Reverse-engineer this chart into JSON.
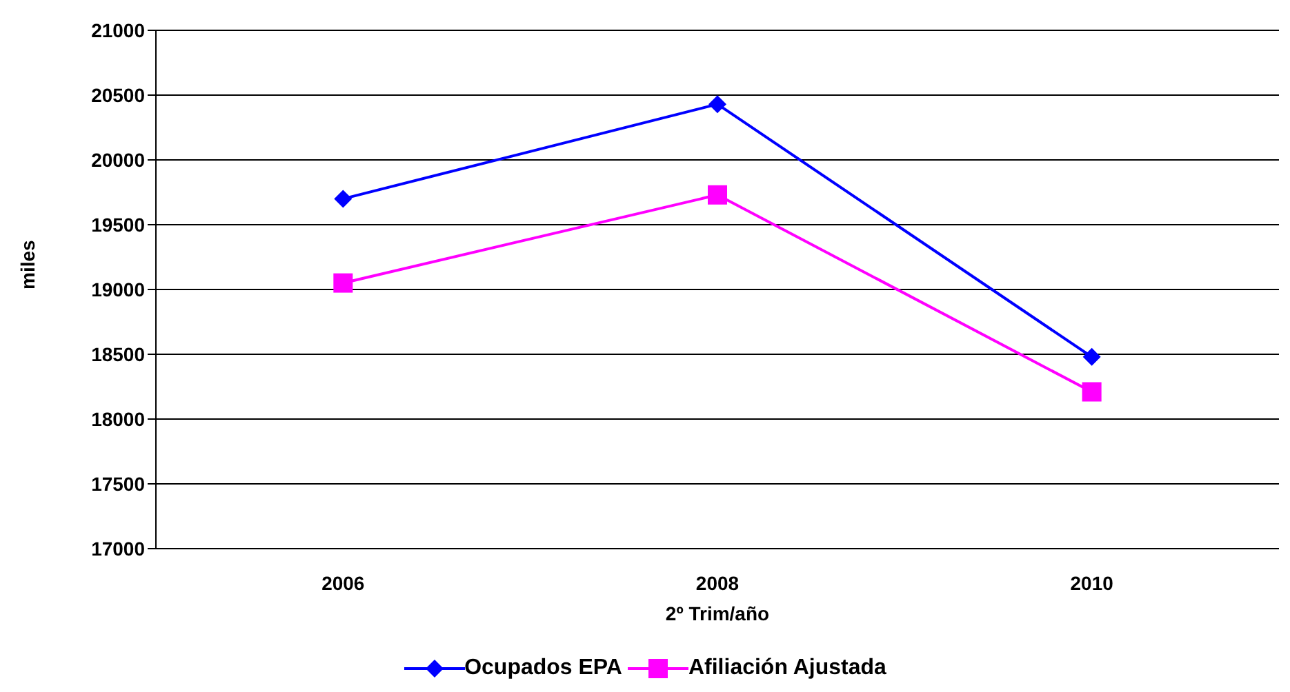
{
  "chart_data": {
    "type": "line",
    "xlabel": "2º Trim/año",
    "ylabel": "miles",
    "categories": [
      "2006",
      "2008",
      "2010"
    ],
    "series": [
      {
        "name": "Ocupados EPA",
        "color": "#0000ff",
        "marker": "diamond",
        "values": [
          19700,
          20430,
          18480
        ]
      },
      {
        "name": "Afiliación Ajustada",
        "color": "#ff00ff",
        "marker": "square",
        "values": [
          19050,
          19730,
          18210
        ]
      }
    ],
    "ylim": [
      17000,
      21000
    ],
    "yticks": [
      17000,
      17500,
      18000,
      18500,
      19000,
      19500,
      20000,
      20500,
      21000
    ],
    "grid": "y",
    "legend": "bottom"
  }
}
